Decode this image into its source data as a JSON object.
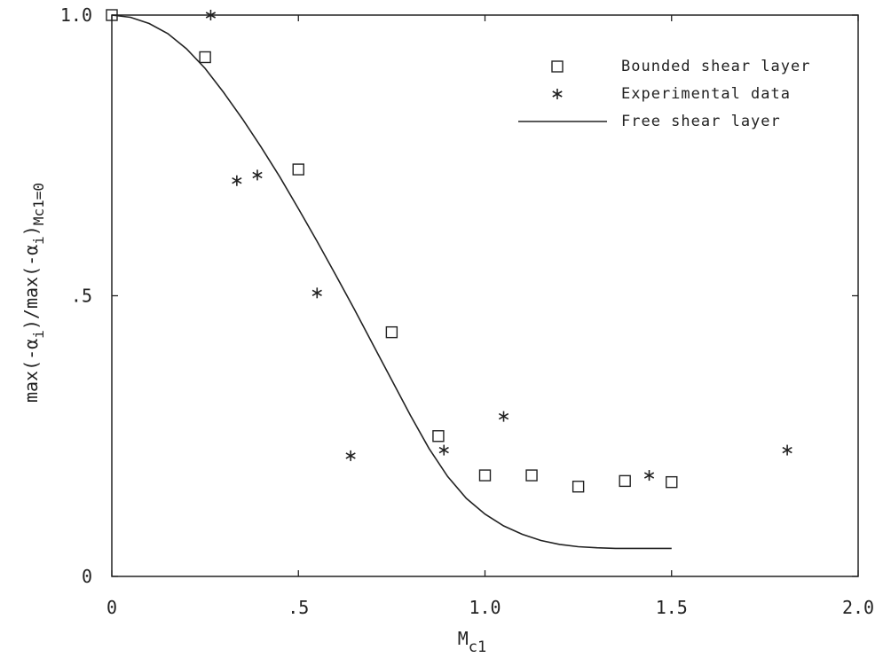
{
  "chart_data": {
    "type": "scatter",
    "title": "",
    "xlabel": "M",
    "xlabel_sub": "c1",
    "ylabel_parts": [
      {
        "t": "max(-α",
        "sub": false
      },
      {
        "t": "i",
        "sub": true
      },
      {
        "t": ")/max(-α",
        "sub": false
      },
      {
        "t": "i",
        "sub": true
      },
      {
        "t": ")",
        "sub": false
      },
      {
        "t": "Mc1=0",
        "sub": true
      }
    ],
    "xlim": [
      0,
      2.0
    ],
    "ylim": [
      0,
      1.0
    ],
    "x_ticks": [
      {
        "value": 0,
        "label": "0"
      },
      {
        "value": 0.5,
        "label": ".5"
      },
      {
        "value": 1.0,
        "label": "1.0"
      },
      {
        "value": 1.5,
        "label": "1.5"
      },
      {
        "value": 2.0,
        "label": "2.0"
      }
    ],
    "y_ticks": [
      {
        "value": 0,
        "label": "0"
      },
      {
        "value": 0.5,
        "label": ".5"
      },
      {
        "value": 1.0,
        "label": "1.0"
      }
    ],
    "grid": false,
    "legend_position": "top-right",
    "series": [
      {
        "name": "Bounded shear layer",
        "marker": "square",
        "color": "#222222",
        "points": [
          [
            0,
            1.0
          ],
          [
            0.25,
            0.925
          ],
          [
            0.5,
            0.725
          ],
          [
            0.75,
            0.435
          ],
          [
            0.875,
            0.25
          ],
          [
            1.0,
            0.18
          ],
          [
            1.125,
            0.18
          ],
          [
            1.25,
            0.16
          ],
          [
            1.375,
            0.17
          ],
          [
            1.5,
            0.168
          ]
        ]
      },
      {
        "name": "Experimental data",
        "marker": "asterisk",
        "color": "#222222",
        "points": [
          [
            0.265,
            1.0
          ],
          [
            0.335,
            0.705
          ],
          [
            0.39,
            0.715
          ],
          [
            0.55,
            0.505
          ],
          [
            0.64,
            0.215
          ],
          [
            0.89,
            0.225
          ],
          [
            1.05,
            0.285
          ],
          [
            1.44,
            0.18
          ],
          [
            1.81,
            0.225
          ]
        ]
      },
      {
        "name": "Free shear layer",
        "marker": "line",
        "color": "#222222",
        "points": [
          [
            0,
            1.0
          ],
          [
            0.05,
            0.996
          ],
          [
            0.1,
            0.985
          ],
          [
            0.15,
            0.967
          ],
          [
            0.2,
            0.94
          ],
          [
            0.25,
            0.905
          ],
          [
            0.3,
            0.862
          ],
          [
            0.35,
            0.815
          ],
          [
            0.4,
            0.765
          ],
          [
            0.45,
            0.712
          ],
          [
            0.5,
            0.655
          ],
          [
            0.55,
            0.597
          ],
          [
            0.6,
            0.537
          ],
          [
            0.65,
            0.476
          ],
          [
            0.7,
            0.413
          ],
          [
            0.75,
            0.35
          ],
          [
            0.8,
            0.287
          ],
          [
            0.85,
            0.228
          ],
          [
            0.9,
            0.178
          ],
          [
            0.95,
            0.139
          ],
          [
            1.0,
            0.111
          ],
          [
            1.05,
            0.09
          ],
          [
            1.1,
            0.075
          ],
          [
            1.15,
            0.064
          ],
          [
            1.2,
            0.057
          ],
          [
            1.25,
            0.053
          ],
          [
            1.3,
            0.051
          ],
          [
            1.35,
            0.05
          ],
          [
            1.4,
            0.05
          ],
          [
            1.5,
            0.05
          ]
        ]
      }
    ]
  }
}
